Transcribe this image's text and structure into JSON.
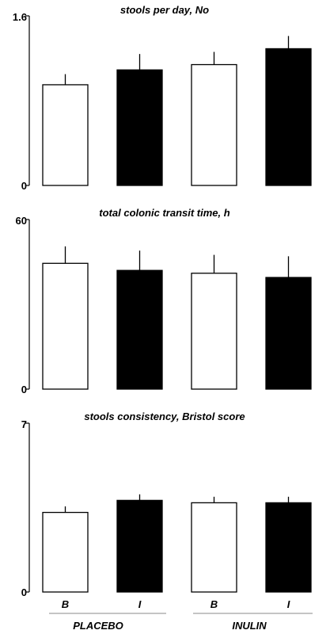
{
  "chart_data": [
    {
      "type": "bar",
      "title": "stools per day, No",
      "categories": [
        "B",
        "I",
        "B",
        "I"
      ],
      "groups": [
        "PLACEBO",
        "INULIN"
      ],
      "values": [
        0.95,
        1.09,
        1.14,
        1.29
      ],
      "errors": [
        0.1,
        0.15,
        0.12,
        0.12
      ],
      "bar_colors": [
        "#ffffff",
        "#000000",
        "#ffffff",
        "#000000"
      ],
      "ylim": [
        0,
        1.6
      ],
      "yticks": [
        "0",
        "1.6"
      ]
    },
    {
      "type": "bar",
      "title": "total colonic transit time, h",
      "categories": [
        "B",
        "I",
        "B",
        "I"
      ],
      "groups": [
        "PLACEBO",
        "INULIN"
      ],
      "values": [
        44.5,
        42,
        41,
        39.5
      ],
      "errors": [
        6,
        7,
        6.5,
        7.5
      ],
      "bar_colors": [
        "#ffffff",
        "#000000",
        "#ffffff",
        "#000000"
      ],
      "ylim": [
        0,
        60
      ],
      "yticks": [
        "0",
        "60"
      ]
    },
    {
      "type": "bar",
      "title": "stools consistency, Bristol score",
      "categories": [
        "B",
        "I",
        "B",
        "I"
      ],
      "groups": [
        "PLACEBO",
        "INULIN"
      ],
      "values": [
        3.3,
        3.8,
        3.7,
        3.7
      ],
      "errors": [
        0.25,
        0.25,
        0.25,
        0.25
      ],
      "bar_colors": [
        "#ffffff",
        "#000000",
        "#ffffff",
        "#000000"
      ],
      "ylim": [
        0,
        7
      ],
      "yticks": [
        "0",
        "7"
      ]
    }
  ]
}
